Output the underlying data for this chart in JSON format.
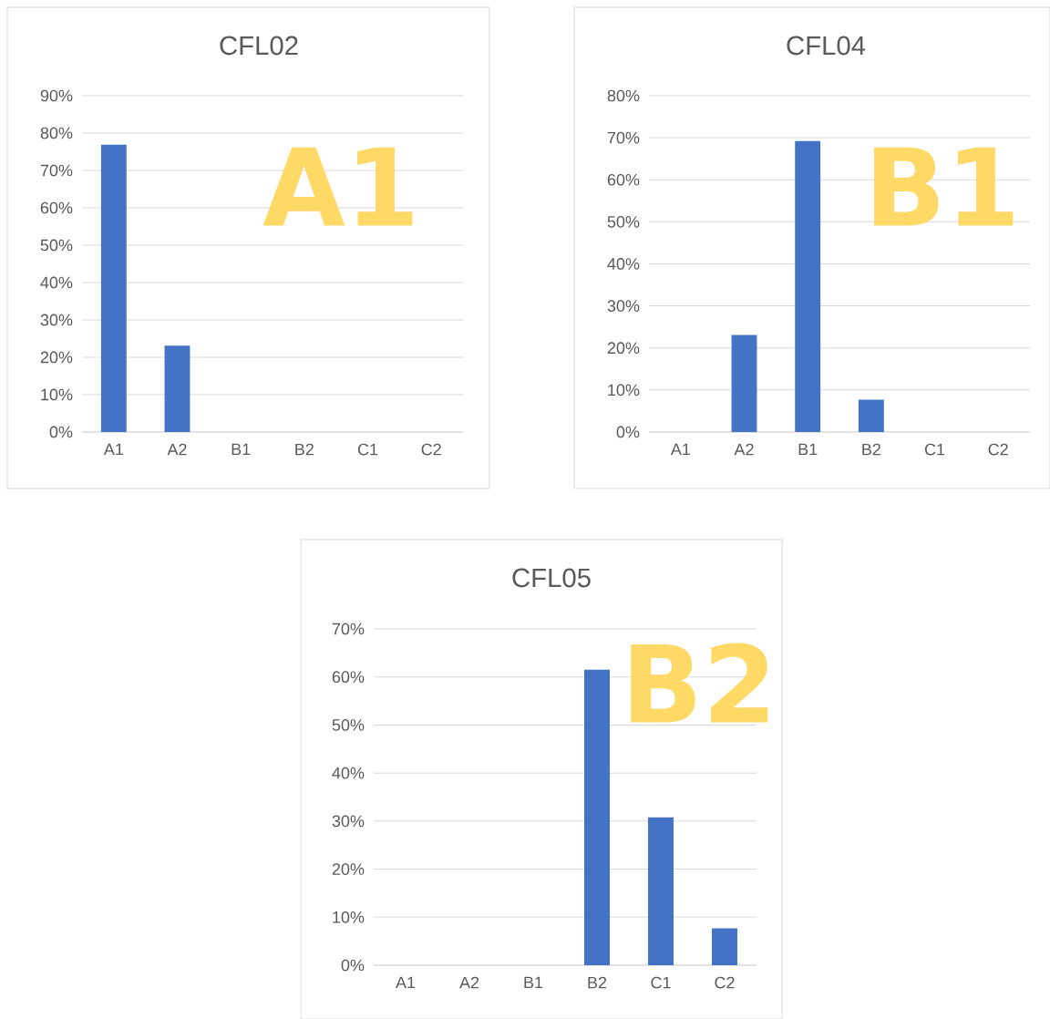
{
  "chart_data": [
    {
      "type": "bar",
      "title": "CFL02",
      "categories": [
        "A1",
        "A2",
        "B1",
        "B2",
        "C1",
        "C2"
      ],
      "values": [
        76.9,
        23.1,
        0,
        0,
        0,
        0
      ],
      "color": "#4472c4",
      "ylim": [
        0,
        90
      ],
      "yticks": [
        {
          "value": 0,
          "label": "0%"
        },
        {
          "value": 10,
          "label": "10%"
        },
        {
          "value": 20,
          "label": "20%"
        },
        {
          "value": 30,
          "label": "30%"
        },
        {
          "value": 40,
          "label": "40%"
        },
        {
          "value": 50,
          "label": "50%"
        },
        {
          "value": 60,
          "label": "60%"
        },
        {
          "value": 70,
          "label": "70%"
        },
        {
          "value": 80,
          "label": "80%"
        },
        {
          "value": 90,
          "label": "90%"
        }
      ],
      "grid": "y",
      "annotations": [
        "A1"
      ]
    },
    {
      "type": "bar",
      "title": "CFL04",
      "categories": [
        "A1",
        "A2",
        "B1",
        "B2",
        "C1",
        "C2"
      ],
      "values": [
        0,
        23.1,
        69.2,
        7.7,
        0,
        0
      ],
      "color": "#4472c4",
      "ylim": [
        0,
        80
      ],
      "yticks": [
        {
          "value": 0,
          "label": "0%"
        },
        {
          "value": 10,
          "label": "10%"
        },
        {
          "value": 20,
          "label": "20%"
        },
        {
          "value": 30,
          "label": "30%"
        },
        {
          "value": 40,
          "label": "40%"
        },
        {
          "value": 50,
          "label": "50%"
        },
        {
          "value": 60,
          "label": "60%"
        },
        {
          "value": 70,
          "label": "70%"
        },
        {
          "value": 80,
          "label": "80%"
        }
      ],
      "grid": "y",
      "annotations": [
        "B1"
      ]
    },
    {
      "type": "bar",
      "title": "CFL05",
      "categories": [
        "A1",
        "A2",
        "B1",
        "B2",
        "C1",
        "C2"
      ],
      "values": [
        0,
        0,
        0,
        61.5,
        30.8,
        7.7
      ],
      "color": "#4472c4",
      "ylim": [
        0,
        70
      ],
      "yticks": [
        {
          "value": 0,
          "label": "0%"
        },
        {
          "value": 10,
          "label": "10%"
        },
        {
          "value": 20,
          "label": "20%"
        },
        {
          "value": 30,
          "label": "30%"
        },
        {
          "value": 40,
          "label": "40%"
        },
        {
          "value": 50,
          "label": "50%"
        },
        {
          "value": 60,
          "label": "60%"
        },
        {
          "value": 70,
          "label": "70%"
        }
      ],
      "grid": "y",
      "annotations": [
        "B2"
      ]
    }
  ]
}
